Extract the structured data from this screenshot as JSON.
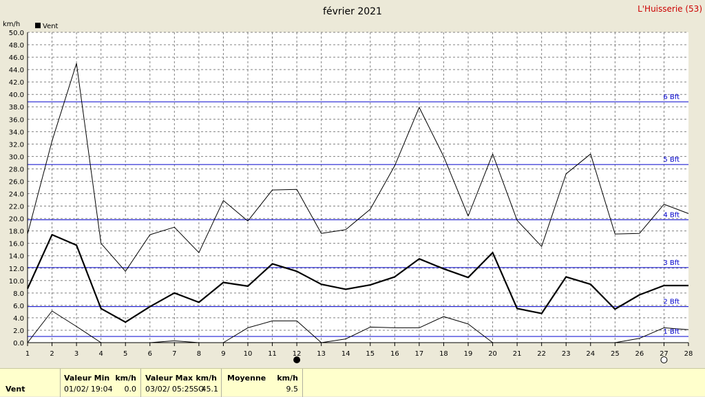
{
  "header": {
    "title": "février 2021",
    "location": "L'Huisserie (53)",
    "unit": "km/h",
    "legend": "Vent"
  },
  "colors": {
    "background": "#ece9d8",
    "grid": "#808080",
    "beaufort": "#0000cc",
    "location": "#cc0000",
    "footer": "#ffffcc"
  },
  "chart_data": {
    "type": "line",
    "title": "février 2021",
    "ylabel": "km/h",
    "xlim": [
      1,
      28
    ],
    "ylim": [
      0,
      50
    ],
    "x_ticks": [
      1,
      2,
      3,
      4,
      5,
      6,
      7,
      8,
      9,
      10,
      11,
      12,
      13,
      14,
      15,
      16,
      17,
      18,
      19,
      20,
      21,
      22,
      23,
      24,
      25,
      26,
      27,
      28
    ],
    "y_ticks": [
      "0.0",
      "2.0",
      "4.0",
      "6.0",
      "8.0",
      "10.0",
      "12.0",
      "14.0",
      "16.0",
      "18.0",
      "20.0",
      "22.0",
      "24.0",
      "26.0",
      "28.0",
      "30.0",
      "32.0",
      "34.0",
      "36.0",
      "38.0",
      "40.0",
      "42.0",
      "44.0",
      "46.0",
      "48.0",
      "50.0"
    ],
    "grid": true,
    "legend": "top-left",
    "series": [
      {
        "name": "Vent",
        "style": "bold",
        "x": [
          1,
          2,
          3,
          4,
          5,
          6,
          7,
          8,
          9,
          10,
          11,
          12,
          13,
          14,
          15,
          16,
          17,
          18,
          19,
          20,
          21,
          22,
          23,
          24,
          25,
          26,
          27,
          28
        ],
        "values": [
          8.7,
          17.4,
          15.7,
          5.5,
          3.3,
          5.8,
          8.0,
          6.5,
          9.7,
          9.1,
          12.7,
          11.5,
          9.4,
          8.6,
          9.3,
          10.6,
          13.5,
          11.9,
          10.5,
          14.5,
          5.5,
          4.7,
          10.6,
          9.4,
          5.4,
          7.7,
          9.2,
          9.2
        ]
      },
      {
        "x": [
          1,
          2,
          3,
          4,
          5,
          6,
          7,
          8,
          9,
          10,
          11,
          12,
          13,
          14,
          15,
          16,
          17,
          18,
          19,
          20,
          21,
          22,
          23,
          24,
          25,
          26,
          27,
          28
        ],
        "values": [
          17.5,
          32.5,
          45.0,
          16.0,
          11.5,
          17.4,
          18.6,
          14.5,
          22.9,
          19.6,
          24.6,
          24.7,
          17.6,
          18.2,
          21.5,
          28.5,
          37.9,
          30.0,
          20.4,
          30.4,
          19.7,
          15.5,
          27.2,
          30.4,
          17.5,
          17.6,
          22.3,
          20.8
        ]
      },
      {
        "x": [
          1,
          2,
          3,
          4,
          5,
          6,
          7,
          8,
          9,
          10,
          11,
          12,
          13,
          14,
          15,
          16,
          17,
          18,
          19,
          20,
          25,
          26,
          27,
          28
        ],
        "values": [
          0.0,
          5.1,
          2.6,
          0.0,
          0.0,
          0.0,
          0.3,
          0.0,
          0.0,
          2.4,
          3.5,
          3.5,
          0.0,
          0.6,
          2.5,
          2.4,
          2.4,
          4.2,
          3.0,
          0.0,
          0.0,
          0.7,
          2.4,
          2.1
        ]
      }
    ],
    "reference_lines": [
      {
        "label": "1 Bft",
        "value": 1.0
      },
      {
        "label": "2 Bft",
        "value": 5.8
      },
      {
        "label": "3 Bft",
        "value": 12.1
      },
      {
        "label": "4 Bft",
        "value": 19.8
      },
      {
        "label": "5 Bft",
        "value": 28.7
      },
      {
        "label": "6 Bft",
        "value": 38.8
      }
    ],
    "moon_phases": [
      {
        "day": 12,
        "phase": "new-moon"
      },
      {
        "day": 27,
        "phase": "full-moon"
      }
    ]
  },
  "footer": {
    "row_label": "Vent",
    "min": {
      "title": "Valeur Min",
      "unit": "km/h",
      "date": "01/02/  19:04",
      "value": "0.0"
    },
    "max": {
      "title": "Valeur Max",
      "unit": "km/h",
      "date": "03/02/  05:25",
      "dir": "SO",
      "value": "45.1"
    },
    "avg": {
      "title": "Moyenne",
      "unit": "km/h",
      "value": "9.5"
    }
  }
}
